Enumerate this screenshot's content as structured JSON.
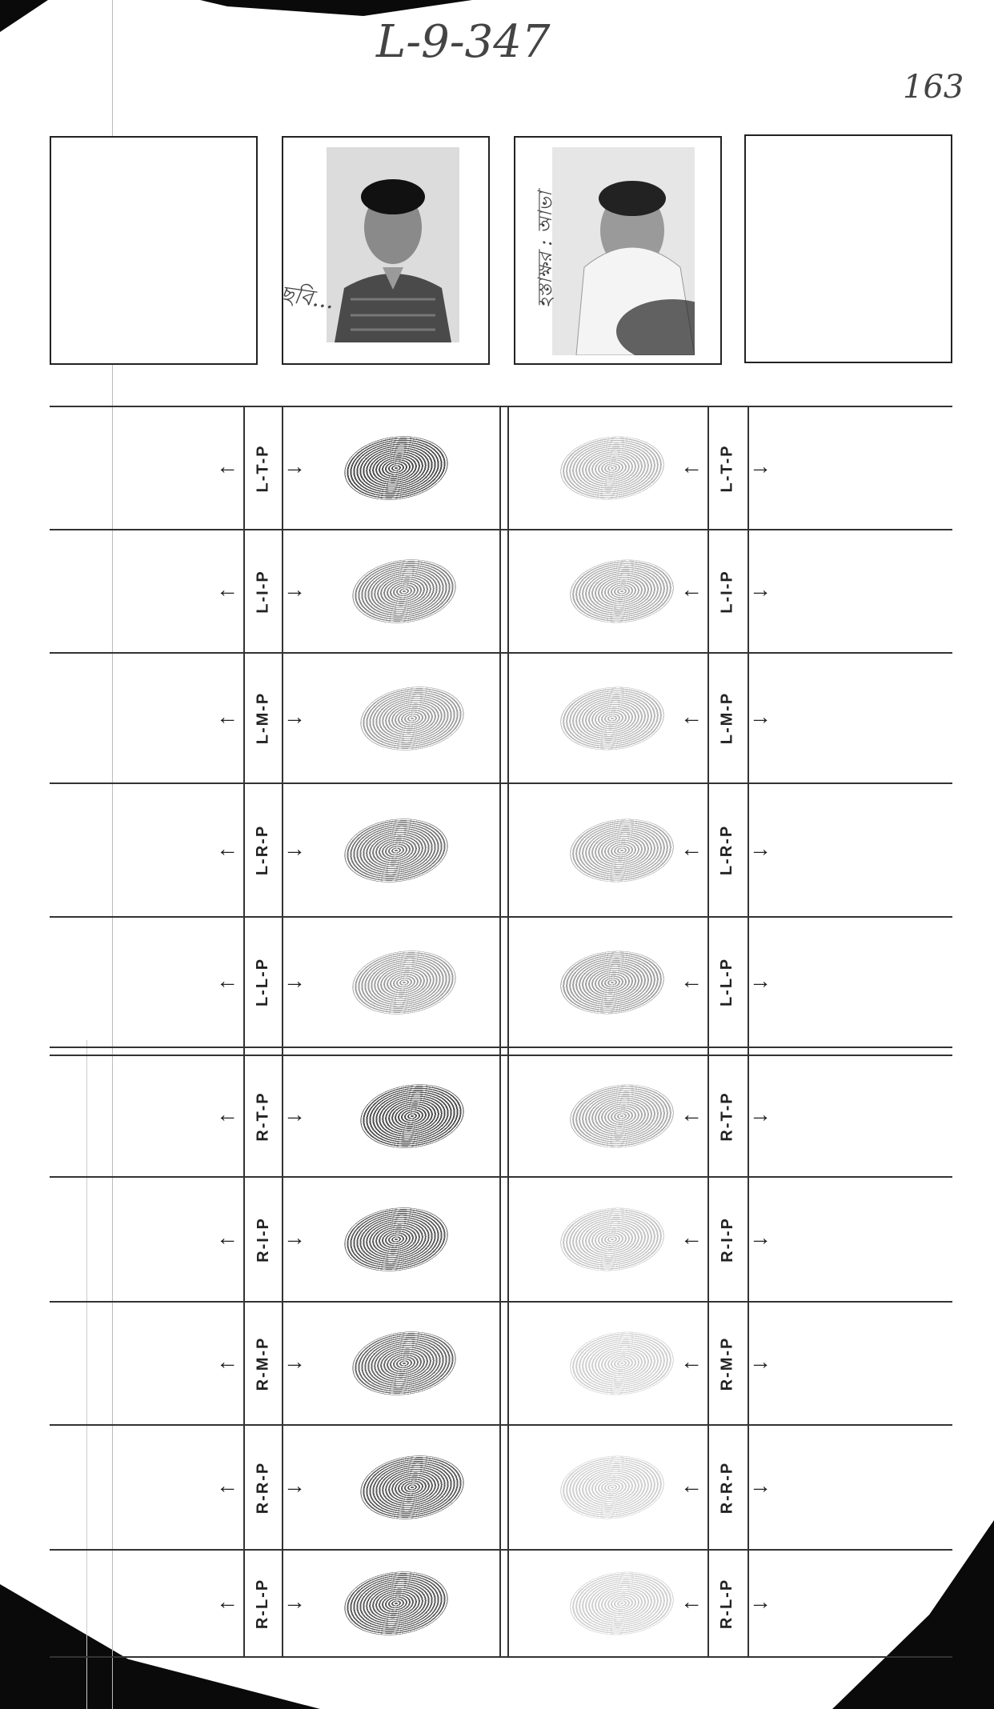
{
  "document": {
    "reference_number": "L-9-347",
    "page_number": "163",
    "signatures": {
      "left_photo": "ছবি... ",
      "right_photo": "হস্তাক্ষর : আভা"
    }
  },
  "fingers": [
    {
      "code": "L-T-P"
    },
    {
      "code": "L-I-P"
    },
    {
      "code": "L-M-P"
    },
    {
      "code": "L-R-P"
    },
    {
      "code": "L-L-P"
    },
    {
      "code": "R-T-P"
    },
    {
      "code": "R-I-P"
    },
    {
      "code": "R-M-P"
    },
    {
      "code": "R-R-P"
    },
    {
      "code": "R-L-P"
    }
  ],
  "icons": {
    "arrow_left": "←",
    "arrow_right": "→"
  }
}
